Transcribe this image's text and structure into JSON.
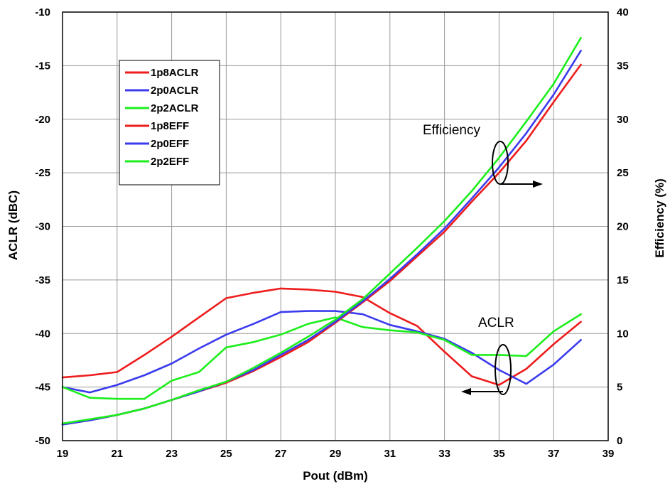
{
  "chart_data": {
    "type": "line",
    "xlabel": "Pout (dBm)",
    "ylabel_left": "ACLR (dBC)",
    "ylabel_right": "Efficiency (%)",
    "xlim": [
      19,
      39
    ],
    "ylim_left": [
      -50,
      -10
    ],
    "ylim_right": [
      0,
      40
    ],
    "x_ticks": [
      19,
      21,
      23,
      25,
      27,
      29,
      31,
      33,
      35,
      37,
      39
    ],
    "y_left_ticks": [
      -10,
      -15,
      -20,
      -25,
      -30,
      -35,
      -40,
      -45,
      -50
    ],
    "y_right_ticks": [
      40,
      35,
      30,
      25,
      20,
      15,
      10,
      5,
      0
    ],
    "grid": true,
    "legend_position": "top-left",
    "x": [
      19,
      20,
      21,
      22,
      23,
      24,
      25,
      26,
      27,
      28,
      29,
      30,
      31,
      32,
      33,
      34,
      35,
      36,
      37,
      38
    ],
    "series": [
      {
        "name": "1p8ACLR",
        "axis": "left",
        "color": "#ee1c1c",
        "values": [
          -44.1,
          -43.9,
          -43.6,
          -42.0,
          -40.3,
          -38.5,
          -36.7,
          -36.2,
          -35.8,
          -35.9,
          -36.1,
          -36.6,
          -38.1,
          -39.3,
          -41.7,
          -44.0,
          -44.8,
          -43.3,
          -41.0,
          -38.9
        ]
      },
      {
        "name": "2p0ACLR",
        "axis": "left",
        "color": "#3b3bee",
        "values": [
          -45.0,
          -45.5,
          -44.8,
          -43.9,
          -42.8,
          -41.4,
          -40.1,
          -39.1,
          -38.0,
          -37.9,
          -37.9,
          -38.2,
          -39.2,
          -39.8,
          -40.5,
          -41.8,
          -43.4,
          -44.7,
          -42.9,
          -40.6
        ]
      },
      {
        "name": "2p2ACLR",
        "axis": "left",
        "color": "#1cee1c",
        "values": [
          -45.0,
          -46.0,
          -46.1,
          -46.1,
          -44.4,
          -43.6,
          -41.3,
          -40.8,
          -40.1,
          -39.1,
          -38.5,
          -39.4,
          -39.7,
          -39.9,
          -40.6,
          -42.0,
          -42.0,
          -42.1,
          -39.8,
          -38.2
        ]
      },
      {
        "name": "1p8EFF",
        "axis": "right",
        "color": "#ee1c1c",
        "values": [
          1.5,
          1.9,
          2.4,
          3.0,
          3.8,
          4.6,
          5.4,
          6.5,
          7.8,
          9.2,
          11.0,
          12.9,
          14.9,
          17.2,
          19.5,
          22.3,
          25.0,
          28.0,
          31.6,
          35.1
        ]
      },
      {
        "name": "2p0EFF",
        "axis": "right",
        "color": "#3b3bee",
        "values": [
          1.5,
          1.9,
          2.4,
          3.0,
          3.8,
          4.6,
          5.5,
          6.6,
          8.0,
          9.4,
          11.1,
          13.0,
          15.1,
          17.4,
          19.8,
          22.6,
          25.5,
          28.7,
          32.3,
          36.4
        ]
      },
      {
        "name": "2p2EFF",
        "axis": "right",
        "color": "#1cee1c",
        "values": [
          1.6,
          2.0,
          2.4,
          3.0,
          3.8,
          4.7,
          5.5,
          6.8,
          8.2,
          9.7,
          11.3,
          13.2,
          15.6,
          18.0,
          20.5,
          23.3,
          26.4,
          29.8,
          33.3,
          37.6
        ]
      }
    ],
    "annotations": {
      "efficiency": "Efficiency",
      "aclr": "ACLR"
    }
  }
}
